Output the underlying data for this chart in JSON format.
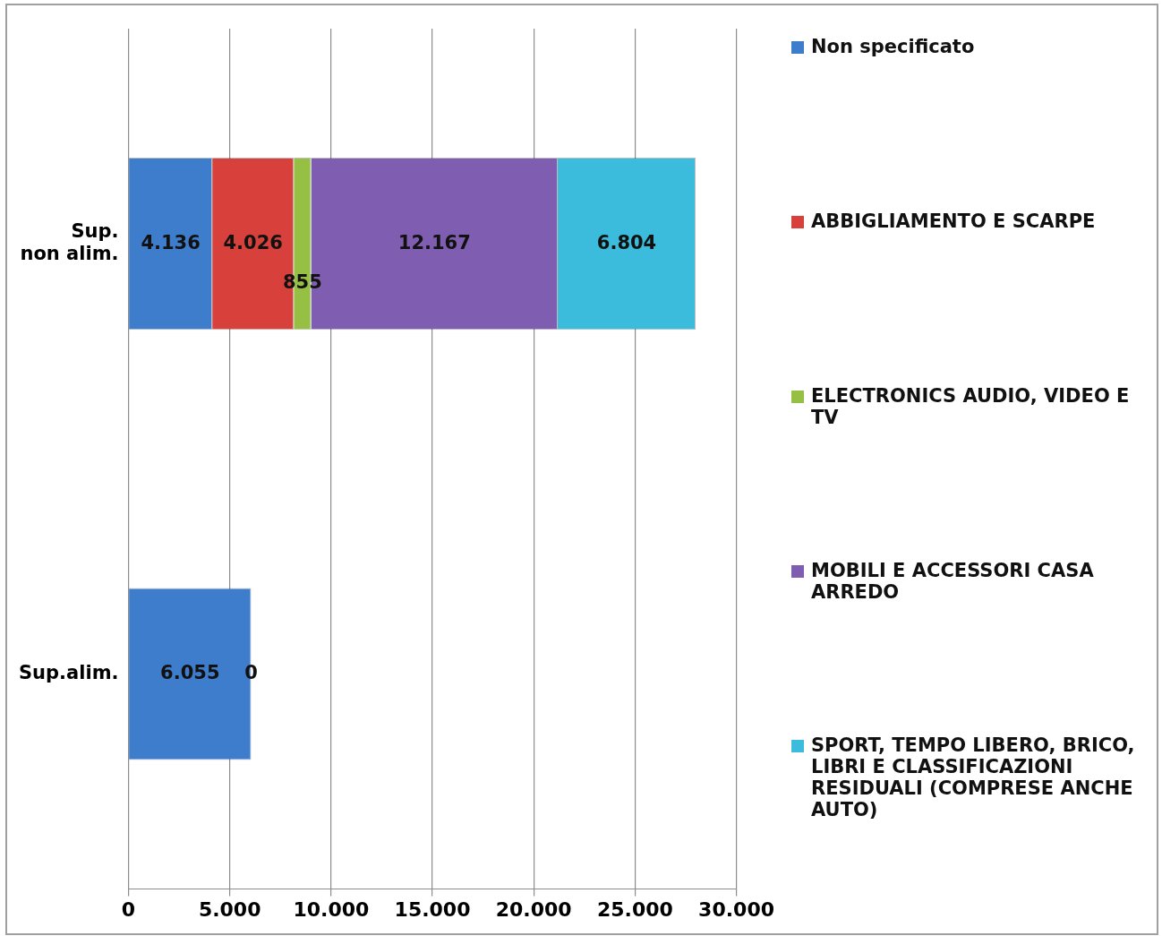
{
  "chart_data": {
    "type": "bar",
    "orientation": "horizontal",
    "stacked": true,
    "categories": [
      "Sup.\nnon alim.",
      "Sup.alim."
    ],
    "series": [
      {
        "name": "Non specificato",
        "color": "#3e7dcc",
        "values": [
          4136,
          6055
        ],
        "value_labels": [
          "4.136",
          "6.055"
        ]
      },
      {
        "name": "ABBIGLIAMENTO E SCARPE",
        "color": "#d7403b",
        "values": [
          4026,
          0
        ],
        "value_labels": [
          "4.026",
          "0"
        ]
      },
      {
        "name": "ELECTRONICS AUDIO, VIDEO E TV",
        "color": "#96c043",
        "values": [
          855,
          null
        ],
        "value_labels": [
          "855",
          null
        ]
      },
      {
        "name": "MOBILI E ACCESSORI CASA ARREDO",
        "color": "#7f5db0",
        "values": [
          12167,
          null
        ],
        "value_labels": [
          "12.167",
          null
        ]
      },
      {
        "name": "SPORT, TEMPO LIBERO, BRICO, LIBRI E CLASSIFICAZIONI RESIDUALI (COMPRESE ANCHE AUTO)",
        "color": "#3bbcdc",
        "values": [
          6804,
          null
        ],
        "value_labels": [
          "6.804",
          null
        ]
      }
    ],
    "xlim": [
      0,
      30000
    ],
    "xticks": [
      {
        "value": 0,
        "label": "0"
      },
      {
        "value": 5000,
        "label": "5.000"
      },
      {
        "value": 10000,
        "label": "10.000"
      },
      {
        "value": 15000,
        "label": "15.000"
      },
      {
        "value": 20000,
        "label": "20.000"
      },
      {
        "value": 25000,
        "label": "25.000"
      },
      {
        "value": 30000,
        "label": "30.000"
      }
    ],
    "grid": "x",
    "legend": "right"
  }
}
